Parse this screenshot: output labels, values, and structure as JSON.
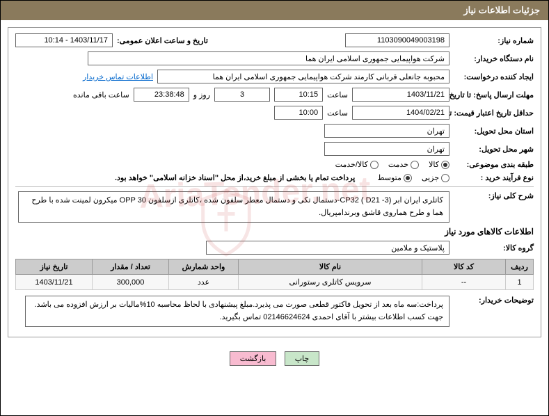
{
  "header": {
    "title": "جزئیات اطلاعات نیاز"
  },
  "fields": {
    "need_no_label": "شماره نیاز:",
    "need_no": "1103090049003198",
    "announce_label": "تاریخ و ساعت اعلان عمومی:",
    "announce_value": "1403/11/17 - 10:14",
    "buyer_org_label": "نام دستگاه خریدار:",
    "buyer_org": "شرکت هواپیمایی جمهوری اسلامی ایران هما",
    "requester_label": "ایجاد کننده درخواست:",
    "requester": "محبوبه جانعلی قربانی کارمند شرکت هواپیمایی جمهوری اسلامی ایران هما",
    "contact_link": "اطلاعات تماس خریدار",
    "deadline_label": "مهلت ارسال پاسخ: تا تاریخ:",
    "deadline_date": "1403/11/21",
    "time_label": "ساعت",
    "deadline_time": "10:15",
    "days_val": "3",
    "days_and": "روز و",
    "countdown": "23:38:48",
    "remaining": "ساعت باقی مانده",
    "validity_label": "حداقل تاریخ اعتبار قیمت: تا تاریخ:",
    "validity_date": "1404/02/21",
    "validity_time": "10:00",
    "province_label": "استان محل تحویل:",
    "province": "تهران",
    "city_label": "شهر محل تحویل:",
    "city": "تهران",
    "category_label": "طبقه بندی موضوعی:",
    "cat_opts": [
      "کالا",
      "خدمت",
      "کالا/خدمت"
    ],
    "process_label": "نوع فرآیند خرید :",
    "proc_opts": [
      "جزیی",
      "متوسط"
    ],
    "payment_note": "پرداخت تمام یا بخشی از مبلغ خرید،از محل \"اسناد خزانه اسلامی\" خواهد بود.",
    "desc_label": "شرح کلی نیاز:",
    "desc_text": "کاتلری ایران ابر (3- CP32 ( D21-دستمال تکی و دستمال معطر سلفون شده ،کاتلری ازسلفون OPP 30 میکرون لمینت شده با طرح هما و طرح هماروی قاشق وبرندامپریال.",
    "goods_section": "اطلاعات کالاهای مورد نیاز",
    "group_label": "گروه کالا:",
    "group_value": "پلاستیک و ملامین",
    "buyer_notes_label": "توضیحات خریدار:",
    "buyer_notes": "پرداخت:سه ماه بعد از تحویل فاکتور قطعی صورت می پذیرد.مبلغ پیشنهادی با لحاظ محاسبه 10%مالیات بر ارزش افزوده می باشد. جهت کسب اطلاعات بیشتر با آقای احمدی 02146624624 تماس بگیرید."
  },
  "table": {
    "headers": [
      "ردیف",
      "کد کالا",
      "نام کالا",
      "واحد شمارش",
      "تعداد / مقدار",
      "تاریخ نیاز"
    ],
    "col_widths": [
      "40px",
      "120px",
      "auto",
      "100px",
      "110px",
      "110px"
    ],
    "rows": [
      [
        "1",
        "--",
        "سرویس کاتلری رستورانی",
        "عدد",
        "300,000",
        "1403/11/21"
      ]
    ]
  },
  "buttons": {
    "print": "چاپ",
    "back": "بازگشت"
  },
  "watermark": "AriaTender.net",
  "colors": {
    "header_bg": "#8a7a5c",
    "border": "#666",
    "th_bg": "#ccc",
    "btn_green": "#c8e6c9",
    "btn_pink": "#f8bbd0"
  }
}
